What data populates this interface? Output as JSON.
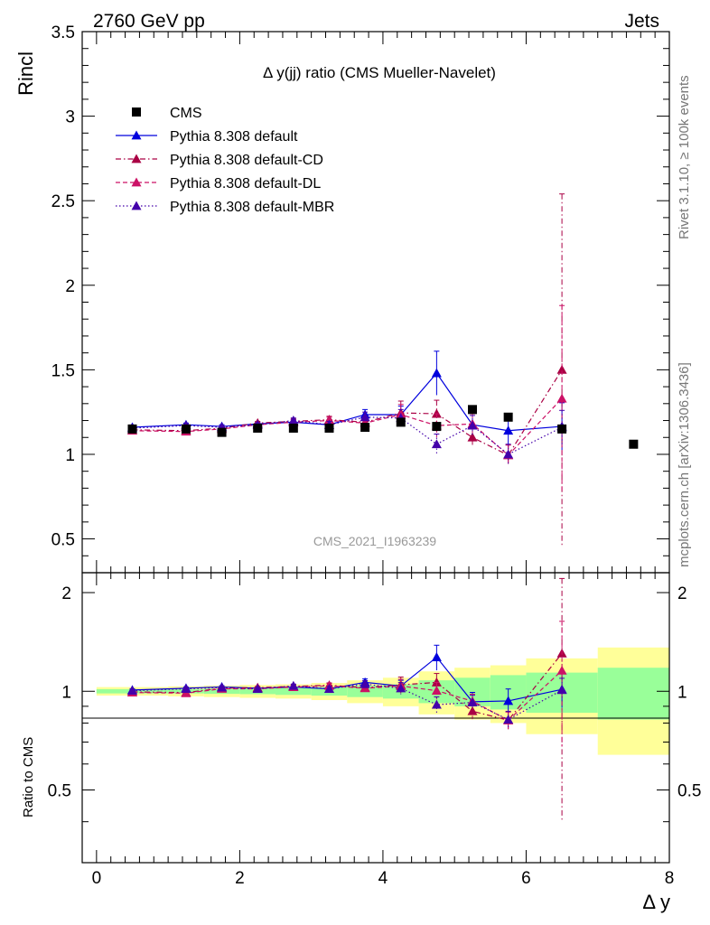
{
  "header": {
    "left": "2760 GeV pp",
    "right": "Jets"
  },
  "side_text": {
    "rivet": "Rivet 3.1.10, ≥ 100k events",
    "mcplots": "mcplots.cern.ch [arXiv:1306.3436]"
  },
  "watermark": "CMS_2021_I1963239",
  "chart_data": {
    "type": "line",
    "title": "Δ y(jj) ratio (CMS Mueller-Navelet)",
    "ylabel": "Rincl",
    "xlabel": "Δ y",
    "ratio_ylabel": "Ratio to CMS",
    "xlim": [
      -0.2,
      8.0
    ],
    "ylim": [
      0.3,
      3.5
    ],
    "ratio_ylim": [
      0.3,
      2.3
    ],
    "legend_position": "top-left",
    "x_ticks": [
      0,
      2,
      4,
      6,
      8
    ],
    "y_ticks": [
      0.5,
      1,
      1.5,
      2,
      2.5,
      3,
      3.5
    ],
    "ratio_y_ticks": [
      0.5,
      1,
      2
    ],
    "data": {
      "name": "CMS",
      "color": "#000000",
      "x": [
        0.5,
        1.25,
        1.75,
        2.25,
        2.75,
        3.25,
        3.75,
        4.25,
        4.75,
        5.25,
        5.75,
        6.5,
        7.5
      ],
      "y": [
        1.15,
        1.15,
        1.13,
        1.155,
        1.155,
        1.155,
        1.16,
        1.19,
        1.165,
        1.265,
        1.22,
        1.15,
        1.06
      ]
    },
    "uncertainty_bands": {
      "x_edges": [
        0.0,
        1.0,
        1.5,
        2.0,
        2.5,
        3.0,
        3.5,
        4.0,
        4.5,
        5.0,
        5.5,
        6.0,
        7.0,
        8.0
      ],
      "inner": [
        0.015,
        0.015,
        0.018,
        0.02,
        0.025,
        0.03,
        0.04,
        0.05,
        0.08,
        0.1,
        0.12,
        0.14,
        0.18
      ],
      "outer": [
        0.03,
        0.035,
        0.04,
        0.045,
        0.05,
        0.06,
        0.08,
        0.1,
        0.15,
        0.18,
        0.2,
        0.26,
        0.36
      ]
    },
    "series": [
      {
        "name": "Pythia 8.308 default",
        "color": "#0000dd",
        "dash": "solid",
        "x": [
          0.5,
          1.25,
          1.75,
          2.25,
          2.75,
          3.25,
          3.75,
          4.25,
          4.75,
          5.25,
          5.75,
          6.5
        ],
        "y": [
          1.16,
          1.175,
          1.165,
          1.18,
          1.19,
          1.175,
          1.235,
          1.235,
          1.48,
          1.175,
          1.14,
          1.165
        ],
        "err": [
          0.01,
          0.01,
          0.01,
          0.01,
          0.015,
          0.02,
          0.03,
          0.05,
          0.13,
          0.08,
          0.1,
          0.14
        ]
      },
      {
        "name": "Pythia 8.308 default-CD",
        "color": "#aa0044",
        "dash": "dashdot",
        "x": [
          0.5,
          1.25,
          1.75,
          2.25,
          2.75,
          3.25,
          3.75,
          4.25,
          4.75,
          5.25,
          5.75,
          6.5
        ],
        "y": [
          1.145,
          1.14,
          1.155,
          1.185,
          1.195,
          1.205,
          1.19,
          1.245,
          1.24,
          1.1,
          0.995,
          1.5
        ],
        "err": [
          0.01,
          0.01,
          0.01,
          0.01,
          0.015,
          0.02,
          0.03,
          0.07,
          0.08,
          0.06,
          0.06,
          1.04
        ]
      },
      {
        "name": "Pythia 8.308 default-DL",
        "color": "#cc1166",
        "dash": "dashed",
        "x": [
          0.5,
          1.25,
          1.75,
          2.25,
          2.75,
          3.25,
          3.75,
          4.25,
          4.75,
          5.25,
          5.75,
          6.5
        ],
        "y": [
          1.14,
          1.135,
          1.15,
          1.175,
          1.19,
          1.2,
          1.185,
          1.235,
          1.17,
          1.18,
          0.995,
          1.33
        ],
        "err": [
          0.01,
          0.01,
          0.01,
          0.01,
          0.015,
          0.02,
          0.03,
          0.06,
          0.07,
          0.06,
          0.06,
          0.55
        ]
      },
      {
        "name": "Pythia 8.308 default-MBR",
        "color": "#4400aa",
        "dash": "dotted",
        "x": [
          0.5,
          1.25,
          1.75,
          2.25,
          2.75,
          3.25,
          3.75,
          4.25,
          4.75,
          5.25,
          5.75,
          6.5
        ],
        "y": [
          1.155,
          1.17,
          1.16,
          1.175,
          1.2,
          1.175,
          1.22,
          1.215,
          1.06,
          1.17,
          1.0,
          1.16
        ],
        "err": [
          0.01,
          0.01,
          0.01,
          0.01,
          0.015,
          0.02,
          0.03,
          0.05,
          0.06,
          0.06,
          0.06,
          0.1
        ]
      }
    ]
  }
}
